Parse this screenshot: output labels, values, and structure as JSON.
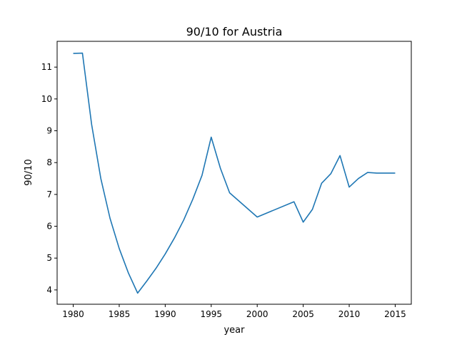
{
  "chart_data": {
    "type": "line",
    "title": "90/10 for Austria",
    "xlabel": "year",
    "ylabel": "90/10",
    "xlim": [
      1978.25,
      2016.75
    ],
    "ylim": [
      3.55,
      11.81
    ],
    "xticks": [
      1980,
      1985,
      1990,
      1995,
      2000,
      2005,
      2010,
      2015
    ],
    "yticks": [
      4,
      5,
      6,
      7,
      8,
      9,
      10,
      11
    ],
    "grid": false,
    "series": [
      {
        "color": "#1f77b4",
        "x": [
          1980,
          1981,
          1982,
          1983,
          1984,
          1985,
          1986,
          1987,
          1988,
          1989,
          1990,
          1991,
          1992,
          1993,
          1994,
          1995,
          1996,
          1997,
          2000,
          2004,
          2005,
          2006,
          2007,
          2008,
          2009,
          2010,
          2011,
          2012,
          2013,
          2014,
          2015
        ],
        "y": [
          11.43,
          11.44,
          9.2,
          7.5,
          6.25,
          5.3,
          4.53,
          3.9,
          4.28,
          4.68,
          5.13,
          5.63,
          6.19,
          6.85,
          7.6,
          8.8,
          7.82,
          7.05,
          6.29,
          6.77,
          6.13,
          6.53,
          7.35,
          7.65,
          8.22,
          7.23,
          7.5,
          7.69,
          7.67,
          7.67,
          7.67
        ]
      }
    ]
  }
}
